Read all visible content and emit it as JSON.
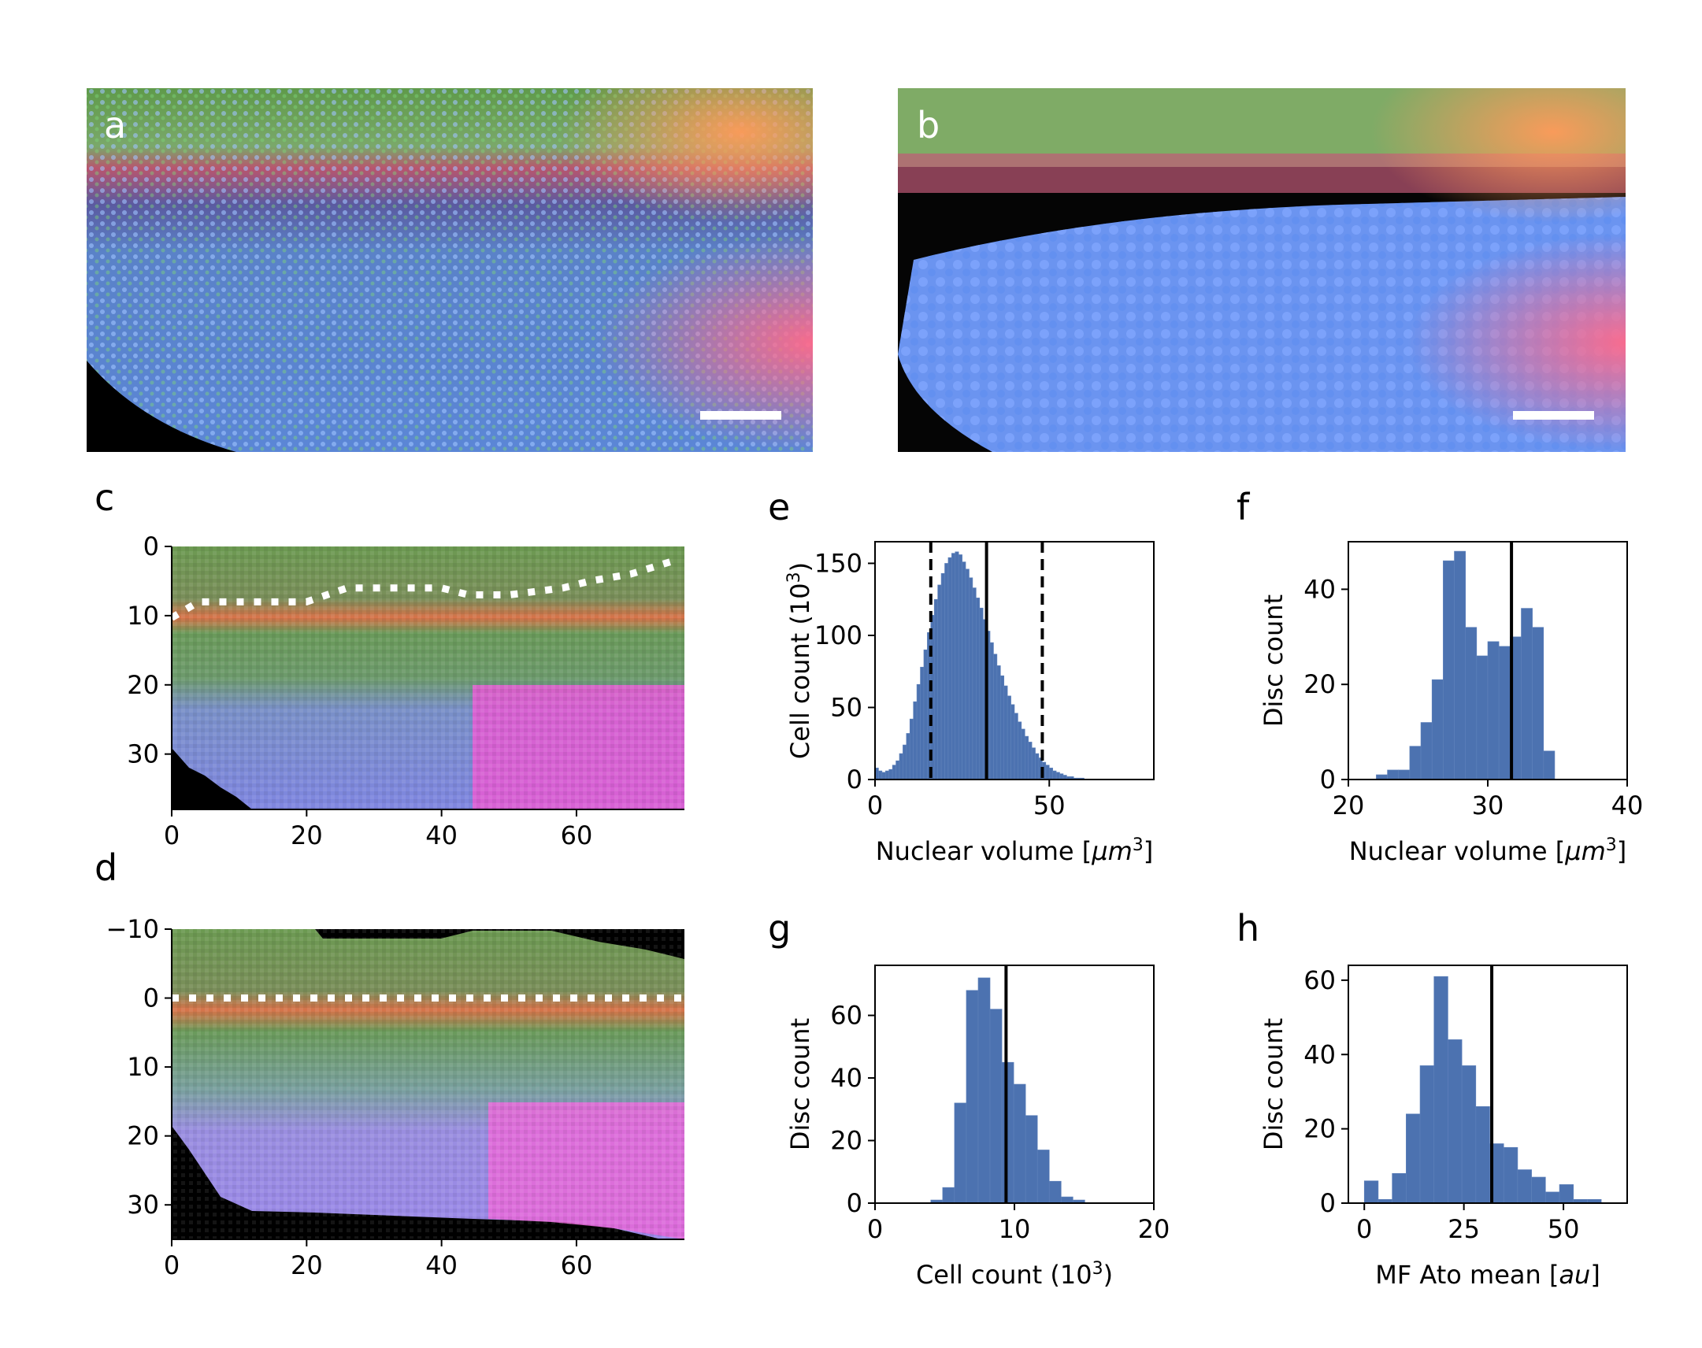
{
  "colors": {
    "bar": "#4c72b0",
    "bar_edge": "#5f82bb",
    "axis": "#000000",
    "vline": "#000000",
    "scale_bar": "#ffffff",
    "tissue_green": "#6aa84f",
    "tissue_red": "#e8604c",
    "tissue_blue": "#6d8fe0",
    "tissue_pink": "#e25ad8"
  },
  "panels": {
    "a": {
      "letter": "a",
      "content": "microscopy image"
    },
    "b": {
      "letter": "b",
      "content": "segmented nuclei image"
    },
    "c": {
      "letter": "c"
    },
    "d": {
      "letter": "d"
    },
    "e": {
      "letter": "e"
    },
    "f": {
      "letter": "f"
    },
    "g": {
      "letter": "g"
    },
    "h": {
      "letter": "h"
    }
  },
  "chart_data": [
    {
      "panel": "c",
      "type": "heatmap",
      "xlim": [
        0,
        76
      ],
      "ylim": [
        38,
        0
      ],
      "xticks": [
        "0",
        "20",
        "40",
        "60"
      ],
      "xtick_values": [
        0,
        20,
        40,
        60
      ],
      "yticks": [
        "0",
        "10",
        "20",
        "30"
      ],
      "ytick_values": [
        0,
        10,
        20,
        30
      ],
      "dotted_line": {
        "x": [
          0,
          4,
          10,
          20,
          26,
          30,
          40,
          44,
          50,
          58,
          62,
          68,
          74
        ],
        "y": [
          10.3,
          8,
          8,
          8,
          6,
          6,
          6,
          7,
          7,
          6,
          5,
          4,
          2.2
        ]
      }
    },
    {
      "panel": "d",
      "type": "heatmap",
      "xlim": [
        0,
        76
      ],
      "ylim": [
        35,
        -10
      ],
      "xticks": [
        "0",
        "20",
        "40",
        "60"
      ],
      "xtick_values": [
        0,
        20,
        40,
        60
      ],
      "yticks": [
        "−10",
        "0",
        "10",
        "20",
        "30"
      ],
      "ytick_values": [
        -10,
        0,
        10,
        20,
        30
      ],
      "dotted_line": {
        "x": [
          0,
          76
        ],
        "y": [
          0,
          0
        ]
      }
    },
    {
      "panel": "e",
      "type": "bar",
      "xlabel": "Nuclear volume [",
      "xlabel_math": "μm",
      "xlabel_sup": "3",
      "xlabel_end": "]",
      "ylabel": "Cell count (10",
      "ylabel_sup": "3",
      "ylabel_end": ")",
      "xlim": [
        0,
        80
      ],
      "ylim": [
        0,
        165
      ],
      "xticks": [
        "0",
        "50"
      ],
      "xtick_values": [
        0,
        50
      ],
      "yticks": [
        "0",
        "50",
        "100",
        "150"
      ],
      "ytick_values": [
        0,
        50,
        100,
        150
      ],
      "bin_start": 0,
      "bin_width": 1,
      "values": [
        8,
        6,
        5,
        6,
        7,
        10,
        13,
        18,
        24,
        32,
        42,
        54,
        66,
        78,
        90,
        102,
        114,
        125,
        135,
        143,
        150,
        154,
        157,
        158,
        156,
        151,
        146,
        140,
        133,
        126,
        119,
        111,
        103,
        95,
        87,
        79,
        72,
        65,
        58,
        52,
        46,
        40,
        35,
        30,
        26,
        22,
        18,
        15,
        12,
        10,
        8,
        6,
        5,
        4,
        3,
        2,
        2,
        1,
        1,
        1
      ],
      "solid_lines": [
        32
      ],
      "dashed_lines": [
        16,
        48
      ]
    },
    {
      "panel": "f",
      "type": "bar",
      "xlabel": "Nuclear volume [",
      "xlabel_math": "μm",
      "xlabel_sup": "3",
      "xlabel_end": "]",
      "ylabel": "Disc count",
      "xlim": [
        20,
        40
      ],
      "ylim": [
        0,
        50
      ],
      "xticks": [
        "20",
        "30",
        "40"
      ],
      "xtick_values": [
        20,
        30,
        40
      ],
      "yticks": [
        "0",
        "20",
        "40"
      ],
      "ytick_values": [
        0,
        20,
        40
      ],
      "bin_start": 22,
      "bin_width": 0.8,
      "values": [
        1,
        2,
        2,
        7,
        12,
        21,
        46,
        48,
        32,
        26,
        29,
        28,
        30,
        36,
        32,
        6
      ],
      "solid_lines": [
        31.7
      ],
      "dashed_lines": []
    },
    {
      "panel": "g",
      "type": "bar",
      "xlabel": "Cell count (10",
      "xlabel_sup": "3",
      "xlabel_end": ")",
      "ylabel": "Disc count",
      "xlim": [
        0,
        20
      ],
      "ylim": [
        0,
        76
      ],
      "xticks": [
        "0",
        "10",
        "20"
      ],
      "xtick_values": [
        0,
        10,
        20
      ],
      "yticks": [
        "0",
        "20",
        "40",
        "60"
      ],
      "ytick_values": [
        0,
        20,
        40,
        60
      ],
      "bin_start": 4,
      "bin_width": 0.85,
      "values": [
        1,
        5,
        32,
        68,
        72,
        62,
        45,
        38,
        28,
        17,
        7,
        2,
        1
      ],
      "solid_lines": [
        9.4
      ],
      "dashed_lines": []
    },
    {
      "panel": "h",
      "type": "bar",
      "xlabel": "MF Ato mean [",
      "xlabel_math": "au",
      "xlabel_end": "]",
      "ylabel": "Disc count",
      "xlim": [
        -4,
        66
      ],
      "ylim": [
        0,
        64
      ],
      "xticks": [
        "0",
        "25",
        "50"
      ],
      "xtick_values": [
        0,
        25,
        50
      ],
      "yticks": [
        "0",
        "20",
        "40",
        "60"
      ],
      "ytick_values": [
        0,
        20,
        40,
        60
      ],
      "bin_start": 0,
      "bin_width": 3.5,
      "values": [
        6,
        1,
        8,
        24,
        37,
        61,
        44,
        37,
        26,
        16,
        15,
        9,
        7,
        3,
        5,
        1,
        1
      ],
      "solid_lines": [
        32
      ],
      "dashed_lines": []
    }
  ]
}
